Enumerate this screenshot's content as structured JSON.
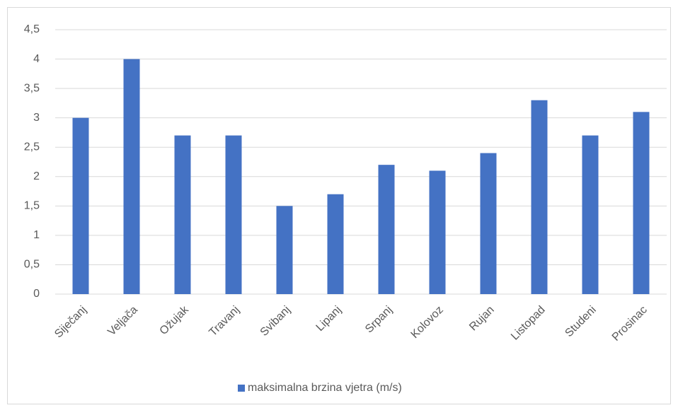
{
  "chart_data": {
    "type": "bar",
    "categories": [
      "Siječanj",
      "Veljača",
      "Ožujak",
      "Travanj",
      "Svibanj",
      "Lipanj",
      "Srpanj",
      "Kolovoz",
      "Rujan",
      "Listopad",
      "Studeni",
      "Prosinac"
    ],
    "series": [
      {
        "name": "maksimalna brzina vjetra (m/s)",
        "color": "#4472c4",
        "values": [
          3,
          4,
          2.7,
          2.7,
          1.5,
          1.7,
          2.2,
          2.1,
          2.4,
          3.3,
          2.7,
          3.1
        ]
      }
    ],
    "ylim": [
      0,
      4.5
    ],
    "yticks": [
      0,
      {
        "value": 0.5,
        "label": "0,5"
      },
      1,
      {
        "value": 1.5,
        "label": "1,5"
      },
      2,
      {
        "value": 2.5,
        "label": "2,5"
      },
      3,
      {
        "value": 3.5,
        "label": "3,5"
      },
      4,
      {
        "value": 4.5,
        "label": "4,5"
      }
    ],
    "grid": true,
    "legend": "bottom"
  }
}
